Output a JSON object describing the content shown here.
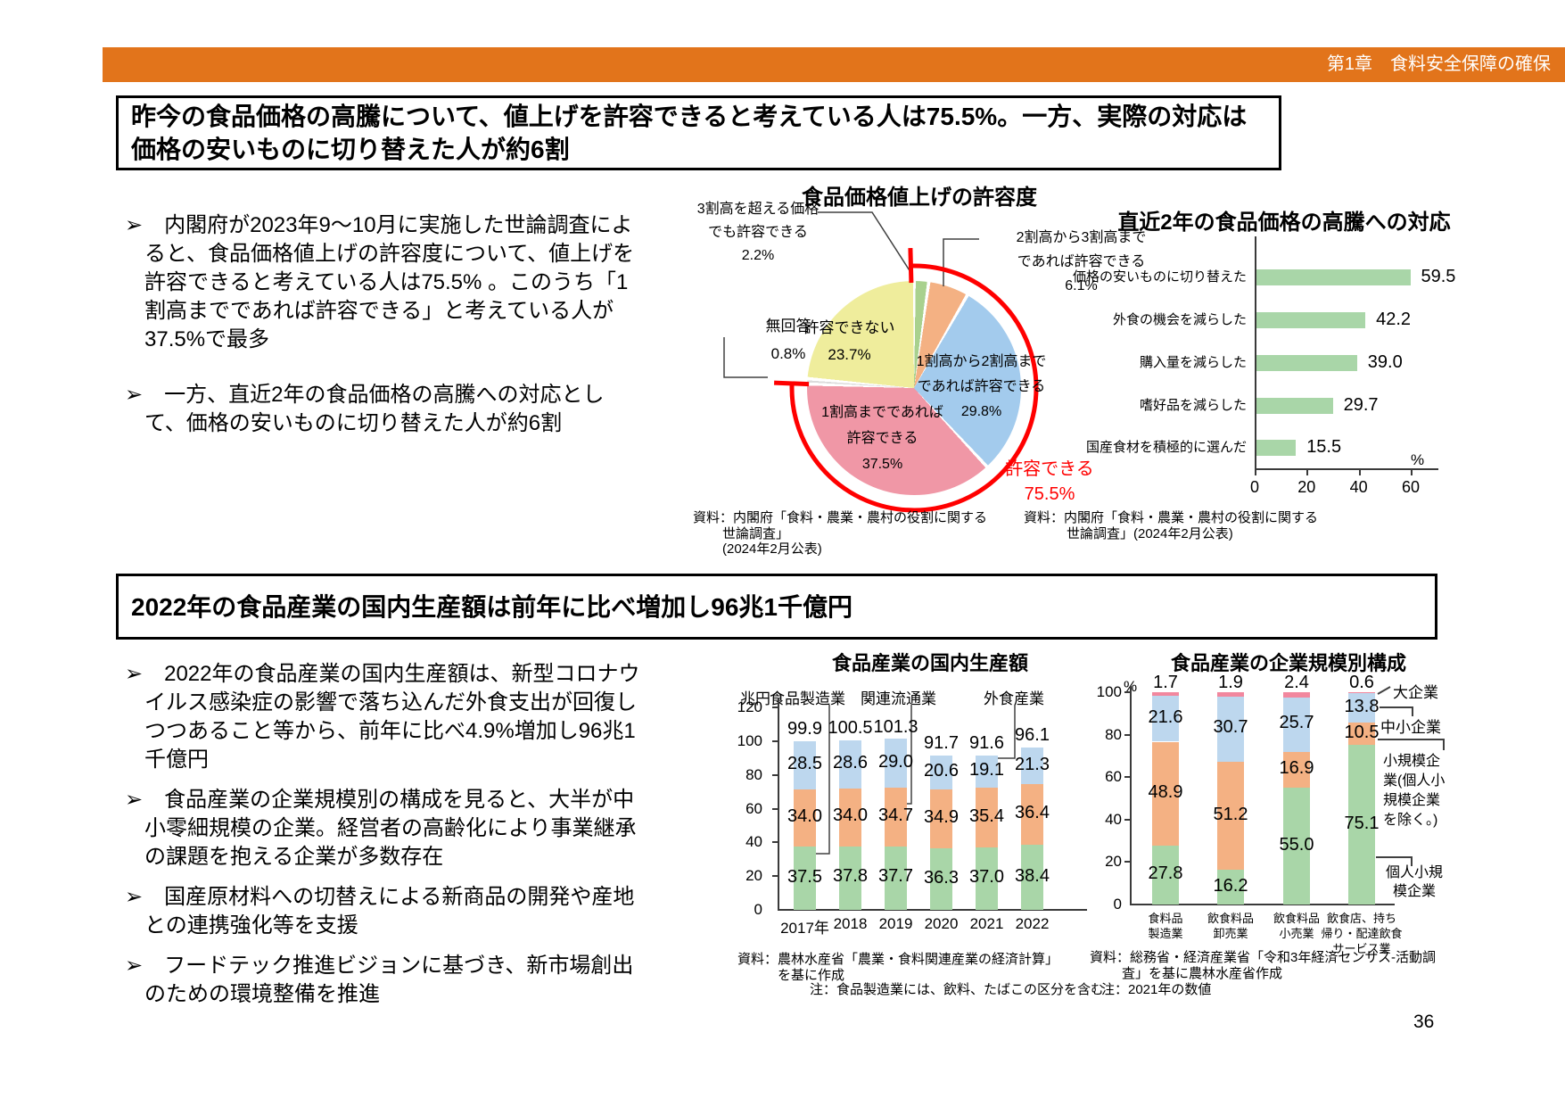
{
  "header": {
    "chapter": "第1章　食料安全保障の確保"
  },
  "page_number": "36",
  "section1": {
    "title": "昨今の食品価格の高騰について、値上げを許容できると考えている人は75.5%。一方、実際の対応は価格の安いものに切り替えた人が約6割",
    "bullets": [
      "内閣府が2023年9～10月に実施した世論調査によると、食品価格値上げの許容度について、値上げを許容できると考えている人は75.5% 。このうち「1割高までであれば許容できる」と考えている人が37.5%で最多",
      "一方、直近2年の食品価格の高騰への対応として、価格の安いものに切り替えた人が約6割"
    ]
  },
  "section2": {
    "title": "2022年の食品産業の国内生産額は前年に比べ増加し96兆1千億円",
    "bullets": [
      "2022年の食品産業の国内生産額は、新型コロナウイルス感染症の影響で落ち込んだ外食支出が回復しつつあること等から、前年に比べ4.9%増加し96兆1千億円",
      "食品産業の企業規模別の構成を見ると、大半が中小零細規模の企業。経営者の高齢化により事業継承の課題を抱える企業が多数存在",
      "国産原材料への切替えによる新商品の開発や産地との連携強化等を支援",
      "フードテック推進ビジョンに基づき、新市場創出のための環境整備を推進"
    ]
  },
  "chart_data": [
    {
      "type": "pie",
      "title": "食品価格値上げの許容度",
      "slices": [
        {
          "label": "3割高を超える価格でも許容できる",
          "value": 2.2,
          "color": "#A9D18E"
        },
        {
          "label": "2割高から3割高までであれば許容できる",
          "value": 6.1,
          "color": "#F4B183"
        },
        {
          "label": "1割高から2割高までであれば許容できる",
          "value": 29.8,
          "color": "#A3CBED"
        },
        {
          "label": "1割高までであれば許容できる",
          "value": 37.5,
          "color": "#F097A6"
        },
        {
          "label": "無回答",
          "value": 0.8,
          "color": "#DCDCDC"
        },
        {
          "label": "許容できない",
          "value": 23.7,
          "color": "#EFED9C"
        }
      ],
      "callouts": {
        "over30": "3割高を超える価格\nでも許容できる\n2.2%",
        "b20to30": "2割高から3割高まで\nであれば許容できる\n6.1%",
        "no_answer": "無回答\n0.8%",
        "cannot": "許容できない\n23.7%",
        "b10to20": "1割高から2割高まで\nであれば許容できる\n29.8%",
        "upto10": "1割高までであれば\n許容できる\n37.5%",
        "acceptable": "許容できる\n75.5%"
      },
      "annotation": {
        "label": "許容できる",
        "value": 75.5,
        "color": "#FF0000"
      },
      "source": "資料：内閣府「食料・農業・農村の役割に関する世論調査」\n(2024年2月公表)"
    },
    {
      "type": "bar",
      "orientation": "horizontal",
      "title": "直近2年の食品価格の高騰への対応",
      "categories": [
        "価格の安いものに切り替えた",
        "外食の機会を減らした",
        "購入量を減らした",
        "嗜好品を減らした",
        "国産食材を積極的に選んだ"
      ],
      "values": [
        59.5,
        42.2,
        39.0,
        29.7,
        15.5
      ],
      "xlim": [
        0,
        60
      ],
      "x_ticks": [
        0,
        20,
        40,
        60
      ],
      "unit": "%",
      "bar_color": "#A9D6A8",
      "source": "資料：内閣府「食料・農業・農村の役割に関する\n世論調査」(2024年2月公表)"
    },
    {
      "type": "bar",
      "stacked": true,
      "title": "食品産業の国内生産額",
      "unit_label": "兆円",
      "categories": [
        "2017年",
        "2018",
        "2019",
        "2020",
        "2021",
        "2022"
      ],
      "series": [
        {
          "name": "食品製造業",
          "color": "#A9D6A8",
          "values": [
            37.5,
            37.8,
            37.7,
            36.3,
            37.0,
            38.4
          ]
        },
        {
          "name": "関連流通業",
          "color": "#F4B183",
          "values": [
            34.0,
            34.0,
            34.7,
            34.9,
            35.4,
            36.4
          ]
        },
        {
          "name": "外食産業",
          "color": "#BDD7EE",
          "values": [
            28.5,
            28.6,
            29.0,
            20.6,
            19.1,
            21.3
          ]
        }
      ],
      "totals": [
        99.9,
        100.5,
        101.3,
        91.7,
        91.6,
        96.1
      ],
      "ylim": [
        0,
        120
      ],
      "y_ticks": [
        0,
        20,
        40,
        60,
        80,
        100,
        120
      ],
      "source": "資料：農林水産省「農業・食料関連産業の経済計算」\nを基に作成",
      "note": "注：食品製造業には、飲料、たばこの区分を含む"
    },
    {
      "type": "bar",
      "stacked": true,
      "title": "食品産業の企業規模別構成",
      "unit_label": "%",
      "categories": [
        "食料品\n製造業",
        "飲食料品\n卸売業",
        "飲食料品\n小売業",
        "飲食店、持ち\n帰り・配達飲食\nサービス業"
      ],
      "series": [
        {
          "name": "個人小規模企業",
          "color": "#A9D6A8",
          "values": [
            27.8,
            16.2,
            55.0,
            75.1
          ]
        },
        {
          "name": "小規模企業(個人小規模企業を除く。)",
          "color": "#F4B183",
          "values": [
            48.9,
            51.2,
            16.9,
            10.5
          ]
        },
        {
          "name": "中小企業",
          "color": "#BDD7EE",
          "values": [
            21.6,
            30.7,
            25.7,
            13.8
          ]
        },
        {
          "name": "大企業",
          "color": "#F2879E",
          "values": [
            1.7,
            1.9,
            2.4,
            0.6
          ]
        }
      ],
      "ylim": [
        0,
        100
      ],
      "y_ticks": [
        0,
        20,
        40,
        60,
        80,
        100
      ],
      "legend_labels": {
        "large": "大企業",
        "medium": "中小企業",
        "small": "小規模企\n業(個人小\n規模企業\nを除く。)",
        "individual": "個人小規\n模企業"
      },
      "source": "資料：総務省・経済産業省「令和3年経済センサス-活動調\n査」を基に農林水産省作成",
      "note": "注：2021年の数値"
    }
  ]
}
